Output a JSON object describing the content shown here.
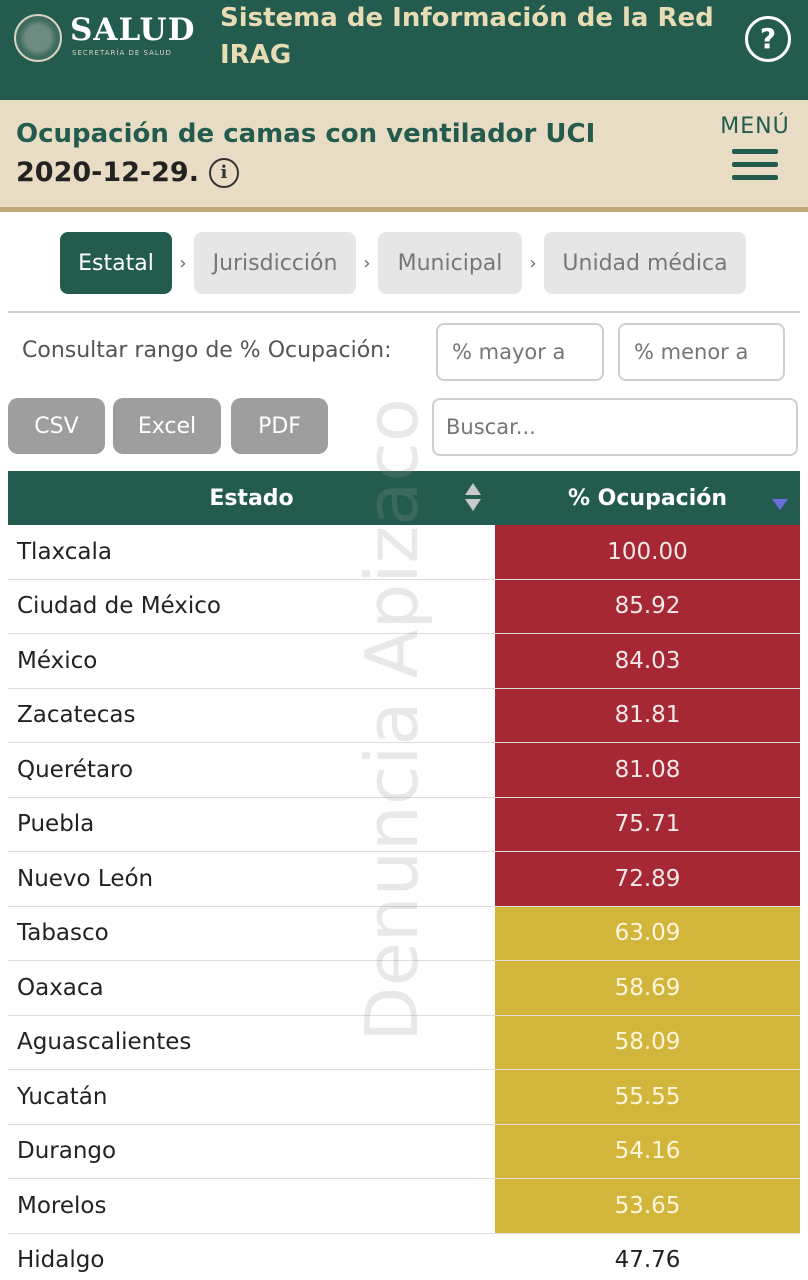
{
  "header": {
    "logo_text": "SALUD",
    "logo_sub": "SECRETARÍA DE SALUD",
    "app_title": "Sistema de Información de la Red IRAG",
    "help_label": "?"
  },
  "subheader": {
    "title": "Ocupación de camas con ventilador UCI",
    "date": "2020-12-29.",
    "info_label": "i",
    "menu_label": "MENÚ"
  },
  "breadcrumbs": [
    {
      "label": "Estatal",
      "active": true
    },
    {
      "label": "Jurisdicción",
      "active": false
    },
    {
      "label": "Municipal",
      "active": false
    },
    {
      "label": "Unidad médica",
      "active": false
    }
  ],
  "filter": {
    "range_label": "Consultar rango de % Ocupación:",
    "min_placeholder": "% mayor a",
    "max_placeholder": "% menor a",
    "search_placeholder": "Buscar..."
  },
  "export": {
    "csv": "CSV",
    "excel": "Excel",
    "pdf": "PDF"
  },
  "table": {
    "headers": [
      "Estado",
      "% Ocupación"
    ],
    "rows": [
      {
        "estado": "Tlaxcala",
        "ocupacion": "100.00",
        "level": "red"
      },
      {
        "estado": "Ciudad de México",
        "ocupacion": "85.92",
        "level": "red"
      },
      {
        "estado": "México",
        "ocupacion": "84.03",
        "level": "red"
      },
      {
        "estado": "Zacatecas",
        "ocupacion": "81.81",
        "level": "red"
      },
      {
        "estado": "Querétaro",
        "ocupacion": "81.08",
        "level": "red"
      },
      {
        "estado": "Puebla",
        "ocupacion": "75.71",
        "level": "red"
      },
      {
        "estado": "Nuevo León",
        "ocupacion": "72.89",
        "level": "red"
      },
      {
        "estado": "Tabasco",
        "ocupacion": "63.09",
        "level": "yellow"
      },
      {
        "estado": "Oaxaca",
        "ocupacion": "58.69",
        "level": "yellow"
      },
      {
        "estado": "Aguascalientes",
        "ocupacion": "58.09",
        "level": "yellow"
      },
      {
        "estado": "Yucatán",
        "ocupacion": "55.55",
        "level": "yellow"
      },
      {
        "estado": "Durango",
        "ocupacion": "54.16",
        "level": "yellow"
      },
      {
        "estado": "Morelos",
        "ocupacion": "53.65",
        "level": "yellow"
      },
      {
        "estado": "Hidalgo",
        "ocupacion": "47.76",
        "level": "plain"
      }
    ]
  },
  "watermark": "Denuncia Apizaco",
  "colors": {
    "brand_green": "#235b4e",
    "sub_beige": "#e8dcc4",
    "high_red": "#a52834",
    "mid_yellow": "#d2b53b",
    "button_gray": "#9e9e9e"
  }
}
